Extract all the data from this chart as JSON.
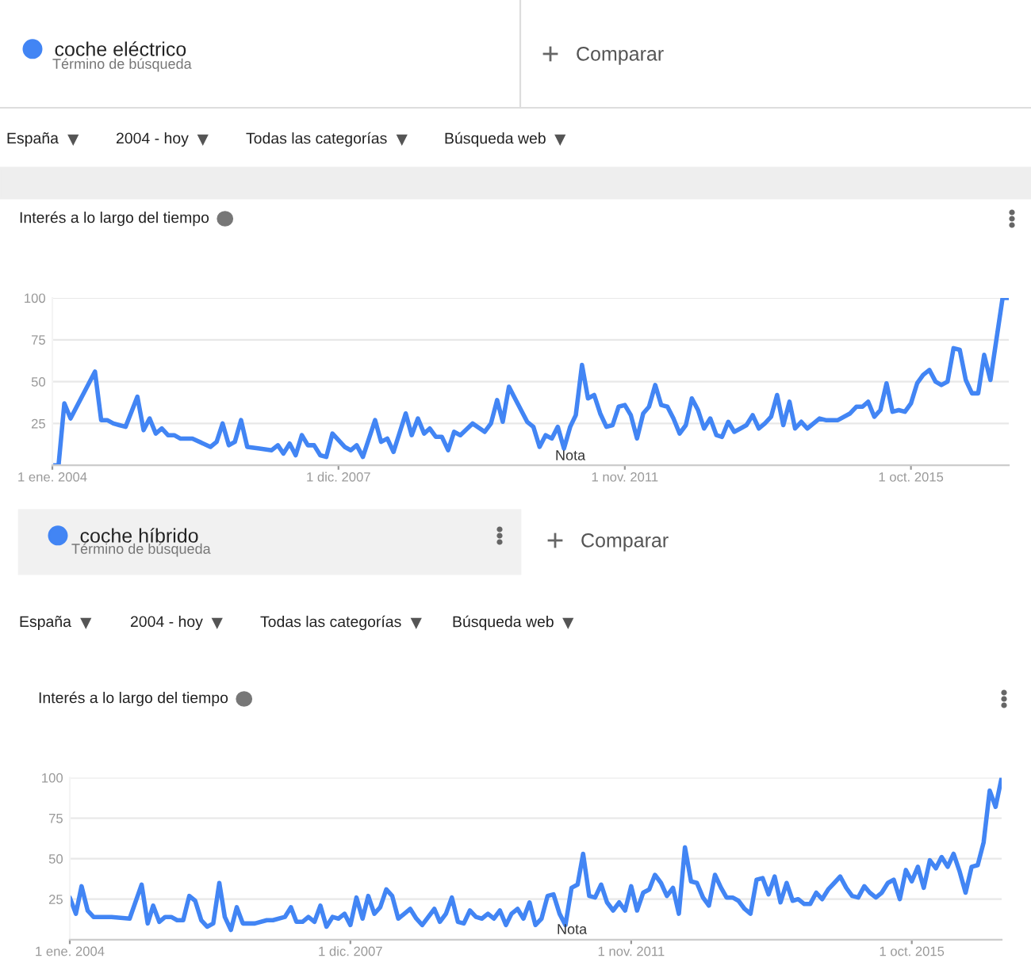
{
  "chart_data": [
    {
      "type": "line",
      "title": "Interés a lo largo del tiempo",
      "legend": "top left",
      "grid": "y",
      "annotations": [
        "Término de búsqueda",
        "Comparar",
        "España",
        "2004 - hoy",
        "Todas las categorías",
        "Búsqueda web",
        "Nota"
      ],
      "xlim": [
        "2004-01",
        "2017-02"
      ],
      "ylim": [
        0,
        100
      ],
      "yticks": [
        25,
        50,
        75,
        100
      ],
      "xticks": [
        {
          "value": "2004-01",
          "label": "1 ene. 2004"
        },
        {
          "value": "2007-12",
          "label": "1 dic. 2007"
        },
        {
          "value": "2011-11",
          "label": "1 nov. 2011"
        },
        {
          "value": "2015-10",
          "label": "1 oct. 2015"
        }
      ],
      "series": [
        {
          "name": "coche eléctrico",
          "color": "#4285f4",
          "x": [
            "2004-01",
            "2004-02",
            "2004-03",
            "2004-04",
            "2004-08",
            "2004-09",
            "2004-10",
            "2004-11",
            "2004-12",
            "2005-01",
            "2005-03",
            "2005-04",
            "2005-05",
            "2005-06",
            "2005-07",
            "2005-08",
            "2005-09",
            "2005-10",
            "2005-12",
            "2006-03",
            "2006-04",
            "2006-05",
            "2006-06",
            "2006-07",
            "2006-08",
            "2006-09",
            "2006-11",
            "2007-01",
            "2007-02",
            "2007-03",
            "2007-04",
            "2007-05",
            "2007-06",
            "2007-07",
            "2007-08",
            "2007-09",
            "2007-10",
            "2007-11",
            "2008-01",
            "2008-02",
            "2008-03",
            "2008-04",
            "2008-06",
            "2008-07",
            "2008-08",
            "2008-09",
            "2008-11",
            "2008-12",
            "2009-01",
            "2009-02",
            "2009-03",
            "2009-04",
            "2009-05",
            "2009-06",
            "2009-07",
            "2009-08",
            "2009-10",
            "2009-12",
            "2010-01",
            "2010-02",
            "2010-03",
            "2010-04",
            "2010-05",
            "2010-07",
            "2010-08",
            "2010-09",
            "2010-10",
            "2010-11",
            "2010-12",
            "2011-01",
            "2011-02",
            "2011-03",
            "2011-04",
            "2011-05",
            "2011-06",
            "2011-07",
            "2011-08",
            "2011-09",
            "2011-10",
            "2011-11",
            "2011-12",
            "2012-01",
            "2012-02",
            "2012-03",
            "2012-04",
            "2012-05",
            "2012-06",
            "2012-07",
            "2012-08",
            "2012-09",
            "2012-10",
            "2012-11",
            "2012-12",
            "2013-01",
            "2013-02",
            "2013-03",
            "2013-04",
            "2013-05",
            "2013-06",
            "2013-07",
            "2013-08",
            "2013-09",
            "2013-10",
            "2013-11",
            "2013-12",
            "2014-01",
            "2014-02",
            "2014-03",
            "2014-04",
            "2014-05",
            "2014-06",
            "2014-07",
            "2014-08",
            "2014-09",
            "2014-10",
            "2014-12",
            "2015-01",
            "2015-02",
            "2015-03",
            "2015-04",
            "2015-05",
            "2015-06",
            "2015-07",
            "2015-08",
            "2015-09",
            "2015-10",
            "2015-11",
            "2015-12",
            "2016-01",
            "2016-02",
            "2016-03",
            "2016-04",
            "2016-05",
            "2016-06",
            "2016-07",
            "2016-08",
            "2016-09",
            "2016-10",
            "2016-11",
            "2017-01",
            "2017-02"
          ],
          "values": [
            0,
            0,
            37,
            28,
            56,
            27,
            27,
            25,
            24,
            23,
            41,
            21,
            28,
            19,
            22,
            18,
            18,
            16,
            16,
            11,
            14,
            25,
            12,
            14,
            27,
            11,
            10,
            9,
            12,
            7,
            13,
            6,
            18,
            12,
            12,
            6,
            5,
            19,
            11,
            9,
            12,
            5,
            27,
            14,
            16,
            8,
            31,
            18,
            28,
            19,
            22,
            17,
            17,
            9,
            20,
            18,
            25,
            20,
            25,
            39,
            26,
            47,
            40,
            26,
            23,
            11,
            18,
            16,
            23,
            10,
            23,
            30,
            60,
            40,
            42,
            31,
            23,
            24,
            35,
            36,
            30,
            16,
            31,
            35,
            48,
            36,
            35,
            28,
            19,
            24,
            40,
            33,
            22,
            28,
            18,
            17,
            26,
            20,
            22,
            24,
            30,
            22,
            25,
            29,
            42,
            24,
            38,
            22,
            26,
            22,
            25,
            28,
            27,
            27,
            27,
            31,
            35,
            35,
            38,
            29,
            33,
            49,
            32,
            33,
            32,
            37,
            49,
            54,
            57,
            50,
            48,
            50,
            70,
            69,
            51,
            43,
            43,
            66,
            51,
            100,
            100
          ]
        }
      ]
    },
    {
      "type": "line",
      "title": "Interés a lo largo del tiempo",
      "legend": "top left",
      "grid": "y",
      "annotations": [
        "Término de búsqueda",
        "Comparar",
        "España",
        "2004 - hoy",
        "Todas las categorías",
        "Búsqueda web",
        "Nota"
      ],
      "xlim": [
        "2004-01",
        "2017-01"
      ],
      "ylim": [
        0,
        100
      ],
      "yticks": [
        25,
        50,
        75,
        100
      ],
      "xticks": [
        {
          "value": "2004-01",
          "label": "1 ene. 2004"
        },
        {
          "value": "2007-12",
          "label": "1 dic. 2007"
        },
        {
          "value": "2011-11",
          "label": "1 nov. 2011"
        },
        {
          "value": "2015-10",
          "label": "1 oct. 2015"
        }
      ],
      "series": [
        {
          "name": "coche híbrido",
          "color": "#4285f4",
          "x": [
            "2004-01",
            "2004-02",
            "2004-03",
            "2004-04",
            "2004-05",
            "2004-08",
            "2004-11",
            "2005-01",
            "2005-02",
            "2005-03",
            "2005-04",
            "2005-05",
            "2005-06",
            "2005-07",
            "2005-08",
            "2005-09",
            "2005-10",
            "2005-11",
            "2005-12",
            "2006-01",
            "2006-02",
            "2006-03",
            "2006-04",
            "2006-05",
            "2006-06",
            "2006-08",
            "2006-10",
            "2006-11",
            "2007-01",
            "2007-02",
            "2007-03",
            "2007-04",
            "2007-05",
            "2007-06",
            "2007-07",
            "2007-08",
            "2007-09",
            "2007-10",
            "2007-11",
            "2007-12",
            "2008-01",
            "2008-02",
            "2008-03",
            "2008-04",
            "2008-05",
            "2008-06",
            "2008-07",
            "2008-08",
            "2008-09",
            "2008-10",
            "2008-11",
            "2008-12",
            "2009-02",
            "2009-03",
            "2009-04",
            "2009-05",
            "2009-06",
            "2009-07",
            "2009-08",
            "2009-09",
            "2009-10",
            "2009-11",
            "2009-12",
            "2010-01",
            "2010-02",
            "2010-03",
            "2010-04",
            "2010-05",
            "2010-06",
            "2010-07",
            "2010-08",
            "2010-09",
            "2010-10",
            "2010-11",
            "2010-12",
            "2011-01",
            "2011-02",
            "2011-03",
            "2011-04",
            "2011-05",
            "2011-06",
            "2011-07",
            "2011-08",
            "2011-09",
            "2011-10",
            "2011-11",
            "2011-12",
            "2012-01",
            "2012-02",
            "2012-03",
            "2012-04",
            "2012-05",
            "2012-06",
            "2012-07",
            "2012-08",
            "2012-09",
            "2012-10",
            "2012-11",
            "2012-12",
            "2013-01",
            "2013-02",
            "2013-03",
            "2013-04",
            "2013-05",
            "2013-06",
            "2013-07",
            "2013-08",
            "2013-09",
            "2013-10",
            "2013-11",
            "2013-12",
            "2014-01",
            "2014-02",
            "2014-03",
            "2014-04",
            "2014-05",
            "2014-06",
            "2014-07",
            "2014-08",
            "2014-09",
            "2014-10",
            "2014-11",
            "2014-12",
            "2015-01",
            "2015-02",
            "2015-03",
            "2015-04",
            "2015-05",
            "2015-06",
            "2015-07",
            "2015-08",
            "2015-09",
            "2015-10",
            "2015-11",
            "2015-12",
            "2016-01",
            "2016-02",
            "2016-03",
            "2016-04",
            "2016-05",
            "2016-06",
            "2016-07",
            "2016-08",
            "2016-09",
            "2016-10",
            "2016-11",
            "2016-12",
            "2017-01"
          ],
          "values": [
            26,
            16,
            33,
            18,
            14,
            14,
            13,
            34,
            10,
            21,
            11,
            14,
            14,
            12,
            12,
            27,
            24,
            12,
            8,
            10,
            35,
            14,
            6,
            20,
            10,
            10,
            12,
            12,
            14,
            20,
            11,
            11,
            14,
            11,
            21,
            8,
            14,
            13,
            16,
            9,
            26,
            13,
            27,
            16,
            20,
            31,
            27,
            13,
            16,
            19,
            13,
            9,
            19,
            11,
            16,
            26,
            11,
            10,
            18,
            14,
            13,
            16,
            13,
            18,
            9,
            16,
            19,
            13,
            23,
            9,
            13,
            27,
            28,
            16,
            9,
            32,
            34,
            53,
            27,
            26,
            34,
            23,
            18,
            23,
            18,
            33,
            18,
            29,
            31,
            40,
            35,
            27,
            32,
            16,
            57,
            36,
            35,
            26,
            21,
            40,
            32,
            26,
            26,
            24,
            19,
            16,
            37,
            38,
            28,
            39,
            23,
            35,
            24,
            25,
            22,
            22,
            29,
            25,
            31,
            35,
            39,
            32,
            27,
            26,
            33,
            29,
            26,
            29,
            35,
            37,
            25,
            43,
            36,
            45,
            32,
            49,
            44,
            51,
            45,
            53,
            42,
            29,
            45,
            46,
            60,
            92,
            82,
            100
          ]
        }
      ]
    }
  ]
}
